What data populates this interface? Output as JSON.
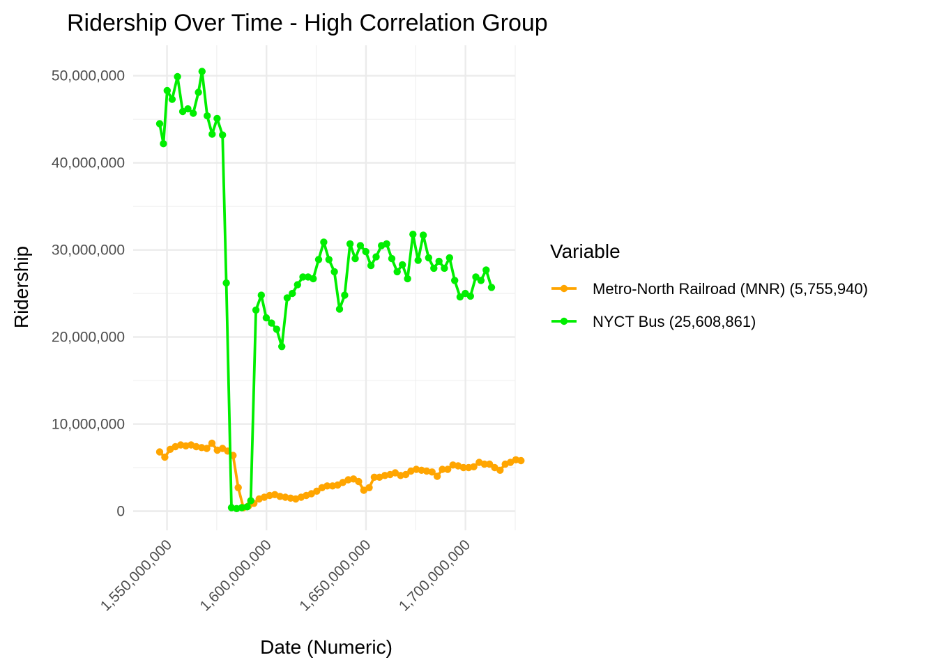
{
  "chart_data": {
    "type": "line",
    "title": "Ridership Over Time - High Correlation Group",
    "xlabel": "Date (Numeric)",
    "ylabel": "Ridership",
    "xlim": [
      1533000000,
      1725000000
    ],
    "ylim": [
      -2200000,
      53500000
    ],
    "x_ticks": [
      1550000000,
      1600000000,
      1650000000,
      1700000000
    ],
    "x_tick_labels": [
      "1,550,000,000",
      "1,600,000,000",
      "1,650,000,000",
      "1,700,000,000"
    ],
    "y_ticks": [
      0,
      10000000,
      20000000,
      30000000,
      40000000,
      50000000
    ],
    "y_tick_labels": [
      "0",
      "10,000,000",
      "20,000,000",
      "30,000,000",
      "40,000,000",
      "50,000,000"
    ],
    "grid": true,
    "legend": {
      "title": "Variable",
      "position": "right"
    },
    "series": [
      {
        "name": "Metro-North Railroad (MNR) (5,755,940)",
        "color": "#FFA500",
        "points": [
          [
            1546300000,
            6800000
          ],
          [
            1548900000,
            6200000
          ],
          [
            1551600000,
            7100000
          ],
          [
            1554200000,
            7400000
          ],
          [
            1556900000,
            7600000
          ],
          [
            1559500000,
            7500000
          ],
          [
            1562100000,
            7600000
          ],
          [
            1564700000,
            7400000
          ],
          [
            1567400000,
            7300000
          ],
          [
            1570000000,
            7200000
          ],
          [
            1572600000,
            7800000
          ],
          [
            1575300000,
            7000000
          ],
          [
            1577900000,
            7200000
          ],
          [
            1580500000,
            6900000
          ],
          [
            1583200000,
            6400000
          ],
          [
            1585800000,
            2700000
          ],
          [
            1588400000,
            400000
          ],
          [
            1591000000,
            600000
          ],
          [
            1593700000,
            900000
          ],
          [
            1596300000,
            1400000
          ],
          [
            1598900000,
            1600000
          ],
          [
            1601600000,
            1800000
          ],
          [
            1604200000,
            1900000
          ],
          [
            1606800000,
            1700000
          ],
          [
            1609500000,
            1600000
          ],
          [
            1612100000,
            1500000
          ],
          [
            1614700000,
            1400000
          ],
          [
            1617400000,
            1600000
          ],
          [
            1620000000,
            1800000
          ],
          [
            1622600000,
            2000000
          ],
          [
            1625300000,
            2300000
          ],
          [
            1627900000,
            2700000
          ],
          [
            1630500000,
            2900000
          ],
          [
            1633200000,
            2900000
          ],
          [
            1635800000,
            3000000
          ],
          [
            1638400000,
            3300000
          ],
          [
            1641100000,
            3600000
          ],
          [
            1643700000,
            3700000
          ],
          [
            1646300000,
            3400000
          ],
          [
            1648900000,
            2400000
          ],
          [
            1651600000,
            2700000
          ],
          [
            1654200000,
            3900000
          ],
          [
            1656800000,
            3900000
          ],
          [
            1659500000,
            4100000
          ],
          [
            1662100000,
            4200000
          ],
          [
            1664700000,
            4400000
          ],
          [
            1667400000,
            4100000
          ],
          [
            1670000000,
            4200000
          ],
          [
            1672600000,
            4600000
          ],
          [
            1675300000,
            4800000
          ],
          [
            1677900000,
            4700000
          ],
          [
            1680500000,
            4600000
          ],
          [
            1683200000,
            4500000
          ],
          [
            1685800000,
            4000000
          ],
          [
            1688400000,
            4800000
          ],
          [
            1691100000,
            4800000
          ],
          [
            1693700000,
            5300000
          ],
          [
            1696300000,
            5200000
          ],
          [
            1699000000,
            5000000
          ],
          [
            1701600000,
            5000000
          ],
          [
            1704200000,
            5100000
          ],
          [
            1706900000,
            5600000
          ],
          [
            1709500000,
            5400000
          ],
          [
            1712100000,
            5400000
          ],
          [
            1714700000,
            5000000
          ],
          [
            1717400000,
            4700000
          ],
          [
            1720000000,
            5400000
          ],
          [
            1722600000,
            5600000
          ],
          [
            1725300000,
            5900000
          ],
          [
            1727900000,
            5800000
          ]
        ]
      },
      {
        "name": "NYCT Bus (25,608,861)",
        "color": "#00EE00",
        "points": [
          [
            1546300000,
            44500000
          ],
          [
            1548200000,
            42200000
          ],
          [
            1550100000,
            48300000
          ],
          [
            1552600000,
            47300000
          ],
          [
            1555300000,
            49900000
          ],
          [
            1557900000,
            45900000
          ],
          [
            1560500000,
            46200000
          ],
          [
            1563200000,
            45700000
          ],
          [
            1565800000,
            48100000
          ],
          [
            1567600000,
            50500000
          ],
          [
            1570200000,
            45400000
          ],
          [
            1572700000,
            43300000
          ],
          [
            1575200000,
            45100000
          ],
          [
            1577900000,
            43200000
          ],
          [
            1579800000,
            26200000
          ],
          [
            1582400000,
            400000
          ],
          [
            1585000000,
            300000
          ],
          [
            1587600000,
            400000
          ],
          [
            1590300000,
            500000
          ],
          [
            1592100000,
            1200000
          ],
          [
            1594700000,
            23100000
          ],
          [
            1597400000,
            24800000
          ],
          [
            1599900000,
            22200000
          ],
          [
            1602500000,
            21600000
          ],
          [
            1605100000,
            20900000
          ],
          [
            1607700000,
            18900000
          ],
          [
            1610400000,
            24500000
          ],
          [
            1613000000,
            25000000
          ],
          [
            1615600000,
            26000000
          ],
          [
            1618300000,
            26900000
          ],
          [
            1620900000,
            26900000
          ],
          [
            1623500000,
            26700000
          ],
          [
            1626200000,
            28900000
          ],
          [
            1628800000,
            30900000
          ],
          [
            1631400000,
            28900000
          ],
          [
            1634100000,
            27500000
          ],
          [
            1636700000,
            23200000
          ],
          [
            1639300000,
            24800000
          ],
          [
            1642000000,
            30700000
          ],
          [
            1644600000,
            29000000
          ],
          [
            1647200000,
            30500000
          ],
          [
            1649900000,
            29800000
          ],
          [
            1652500000,
            28200000
          ],
          [
            1655100000,
            29200000
          ],
          [
            1657800000,
            30500000
          ],
          [
            1660400000,
            30700000
          ],
          [
            1663000000,
            29000000
          ],
          [
            1665700000,
            27500000
          ],
          [
            1668300000,
            28300000
          ],
          [
            1670900000,
            26700000
          ],
          [
            1673600000,
            31800000
          ],
          [
            1676200000,
            28800000
          ],
          [
            1678800000,
            31700000
          ],
          [
            1681500000,
            29100000
          ],
          [
            1684100000,
            27900000
          ],
          [
            1686700000,
            28700000
          ],
          [
            1689400000,
            27900000
          ],
          [
            1692000000,
            29100000
          ],
          [
            1694600000,
            26500000
          ],
          [
            1697300000,
            24600000
          ],
          [
            1699900000,
            25000000
          ],
          [
            1702500000,
            24700000
          ],
          [
            1705200000,
            26900000
          ],
          [
            1707800000,
            26500000
          ],
          [
            1710400000,
            27700000
          ],
          [
            1713100000,
            25700000
          ]
        ]
      }
    ]
  }
}
